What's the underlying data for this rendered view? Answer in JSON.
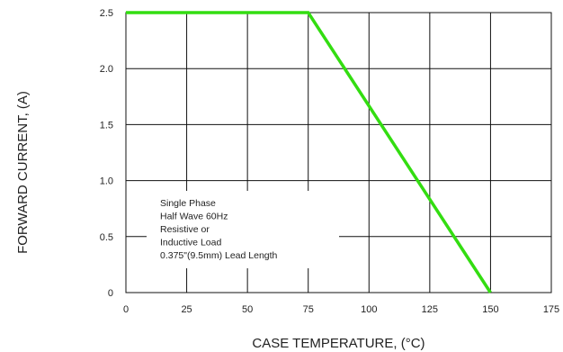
{
  "chart_data": {
    "type": "line",
    "title": "",
    "xlabel": "CASE TEMPERATURE, (°C)",
    "ylabel": "FORWARD CURRENT,  (A)",
    "xlim": [
      0,
      175
    ],
    "ylim": [
      0,
      2.5
    ],
    "x_ticks": [
      0,
      25,
      50,
      75,
      100,
      125,
      150,
      175
    ],
    "y_ticks": [
      0,
      0.5,
      1.0,
      1.5,
      2.0,
      2.5
    ],
    "x_tick_labels": [
      "0",
      "25",
      "50",
      "75",
      "100",
      "125",
      "150",
      "175"
    ],
    "y_tick_labels": [
      "0",
      "0.5",
      "1.0",
      "1.5",
      "2.0",
      "2.5"
    ],
    "grid": true,
    "series": [
      {
        "x": [
          0,
          75,
          150
        ],
        "y": [
          2.5,
          2.5,
          0
        ],
        "color": "#33dd11"
      }
    ],
    "annotation_lines": [
      "Single Phase",
      "Half Wave 60Hz",
      "Resistive or",
      "Inductive Load",
      "0.375\"(9.5mm) Lead Length"
    ]
  }
}
